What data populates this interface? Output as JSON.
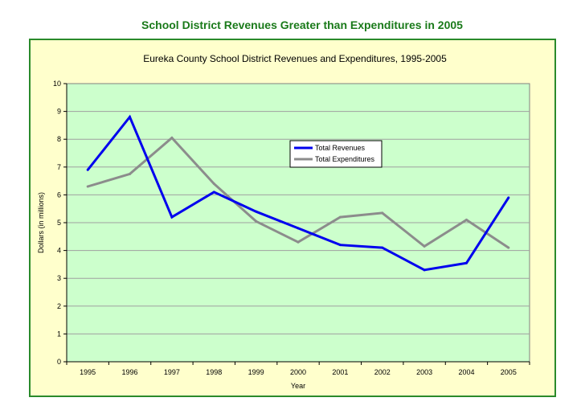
{
  "page_title": "School District Revenues Greater than Expenditures in 2005",
  "colors": {
    "title": "#1a7a1a",
    "frame_border": "#2a8a2a",
    "frame_bg": "#ffffcc",
    "plot_bg": "#ccffcc",
    "revenues": "#0000ee",
    "expenditures": "#8c8c8c"
  },
  "chart_data": {
    "type": "line",
    "title": "Eureka County School District Revenues and Expenditures, 1995-2005",
    "xlabel": "Year",
    "ylabel": "Dollars (in millions)",
    "ylim": [
      0,
      10
    ],
    "yticks": [
      "0",
      "1",
      "2",
      "3",
      "4",
      "5",
      "6",
      "7",
      "8",
      "9",
      "10"
    ],
    "categories": [
      "1995",
      "1996",
      "1997",
      "1998",
      "1999",
      "2000",
      "2001",
      "2002",
      "2003",
      "2004",
      "2005"
    ],
    "grid": "horizontal",
    "legend_position": "center-right",
    "series": [
      {
        "name": "Total Revenues",
        "color": "#0000ee",
        "values": [
          6.9,
          8.8,
          5.2,
          6.1,
          5.4,
          4.8,
          4.2,
          4.1,
          3.3,
          3.55,
          5.9
        ]
      },
      {
        "name": "Total Expenditures",
        "color": "#8c8c8c",
        "values": [
          6.3,
          6.75,
          8.05,
          6.4,
          5.05,
          4.3,
          5.2,
          5.35,
          4.15,
          5.1,
          4.1
        ]
      }
    ]
  }
}
